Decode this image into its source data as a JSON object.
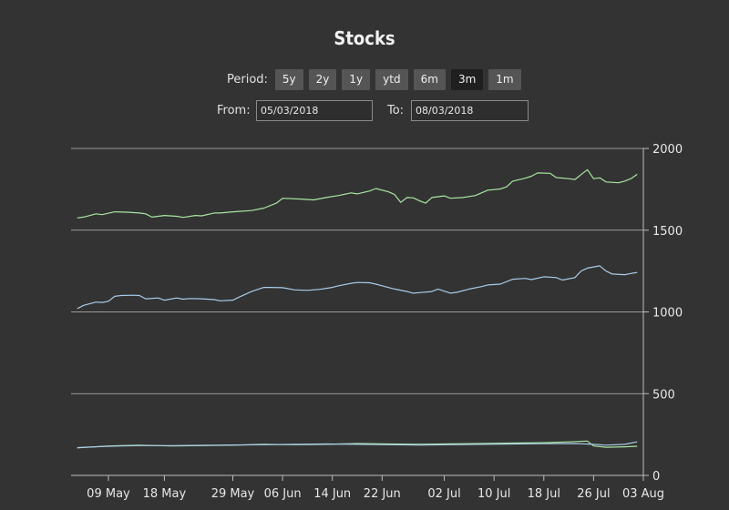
{
  "header": {
    "title": "Stocks"
  },
  "period": {
    "label": "Period:",
    "options": [
      "5y",
      "2y",
      "1y",
      "ytd",
      "6m",
      "3m",
      "1m"
    ],
    "selected": "3m"
  },
  "range": {
    "from_label": "From:",
    "from_value": "05/03/2018",
    "to_label": "To:",
    "to_value": "08/03/2018"
  },
  "colors": {
    "background": "#333333",
    "series_top": "#a8e6a1",
    "series_mid": "#a9cce8",
    "series_bottom": "#a8e6a1",
    "grid": "#bdbdbd",
    "button": "#555555",
    "button_active": "#1f1f1f"
  },
  "chart_data": {
    "type": "line",
    "y_axis": {
      "position": "right",
      "ylim": [
        0,
        2000
      ],
      "ticks": [
        0,
        500,
        1000,
        1500,
        2000
      ]
    },
    "x_axis": {
      "range": [
        "2018-05-03",
        "2018-08-03"
      ],
      "ticks": [
        {
          "date": "2018-05-09",
          "label": "09 May"
        },
        {
          "date": "2018-05-18",
          "label": "18 May"
        },
        {
          "date": "2018-05-29",
          "label": "29 May"
        },
        {
          "date": "2018-06-06",
          "label": "06 Jun"
        },
        {
          "date": "2018-06-14",
          "label": "14 Jun"
        },
        {
          "date": "2018-06-22",
          "label": "22 Jun"
        },
        {
          "date": "2018-07-02",
          "label": "02 Jul"
        },
        {
          "date": "2018-07-10",
          "label": "10 Jul"
        },
        {
          "date": "2018-07-18",
          "label": "18 Jul"
        },
        {
          "date": "2018-07-26",
          "label": "26 Jul"
        },
        {
          "date": "2018-08-03",
          "label": "03 Aug"
        }
      ]
    },
    "grid": true,
    "legend": "none",
    "series": [
      {
        "points": [
          [
            "2018-05-04",
            1575
          ],
          [
            "2018-05-05",
            1580
          ],
          [
            "2018-05-07",
            1600
          ],
          [
            "2018-05-08",
            1595
          ],
          [
            "2018-05-10",
            1612
          ],
          [
            "2018-05-12",
            1610
          ],
          [
            "2018-05-14",
            1605
          ],
          [
            "2018-05-15",
            1600
          ],
          [
            "2018-05-16",
            1580
          ],
          [
            "2018-05-18",
            1590
          ],
          [
            "2018-05-20",
            1585
          ],
          [
            "2018-05-21",
            1578
          ],
          [
            "2018-05-23",
            1590
          ],
          [
            "2018-05-24",
            1588
          ],
          [
            "2018-05-26",
            1605
          ],
          [
            "2018-05-27",
            1605
          ],
          [
            "2018-05-29",
            1612
          ],
          [
            "2018-05-30",
            1615
          ],
          [
            "2018-06-01",
            1620
          ],
          [
            "2018-06-03",
            1635
          ],
          [
            "2018-06-05",
            1665
          ],
          [
            "2018-06-06",
            1695
          ],
          [
            "2018-06-09",
            1690
          ],
          [
            "2018-06-11",
            1685
          ],
          [
            "2018-06-13",
            1700
          ],
          [
            "2018-06-15",
            1712
          ],
          [
            "2018-06-17",
            1728
          ],
          [
            "2018-06-18",
            1722
          ],
          [
            "2018-06-20",
            1740
          ],
          [
            "2018-06-21",
            1755
          ],
          [
            "2018-06-23",
            1735
          ],
          [
            "2018-06-24",
            1718
          ],
          [
            "2018-06-25",
            1670
          ],
          [
            "2018-06-26",
            1700
          ],
          [
            "2018-06-27",
            1698
          ],
          [
            "2018-06-28",
            1680
          ],
          [
            "2018-06-29",
            1665
          ],
          [
            "2018-06-30",
            1700
          ],
          [
            "2018-07-02",
            1710
          ],
          [
            "2018-07-03",
            1695
          ],
          [
            "2018-07-05",
            1700
          ],
          [
            "2018-07-07",
            1712
          ],
          [
            "2018-07-09",
            1745
          ],
          [
            "2018-07-11",
            1752
          ],
          [
            "2018-07-12",
            1765
          ],
          [
            "2018-07-13",
            1800
          ],
          [
            "2018-07-15",
            1818
          ],
          [
            "2018-07-16",
            1830
          ],
          [
            "2018-07-17",
            1850
          ],
          [
            "2018-07-19",
            1848
          ],
          [
            "2018-07-20",
            1822
          ],
          [
            "2018-07-22",
            1815
          ],
          [
            "2018-07-23",
            1810
          ],
          [
            "2018-07-24",
            1840
          ],
          [
            "2018-07-25",
            1870
          ],
          [
            "2018-07-26",
            1815
          ],
          [
            "2018-07-27",
            1820
          ],
          [
            "2018-07-28",
            1795
          ],
          [
            "2018-07-30",
            1790
          ],
          [
            "2018-07-31",
            1800
          ],
          [
            "2018-08-01",
            1815
          ],
          [
            "2018-08-02",
            1842
          ]
        ]
      },
      {
        "points": [
          [
            "2018-05-04",
            1020
          ],
          [
            "2018-05-05",
            1040
          ],
          [
            "2018-05-07",
            1060
          ],
          [
            "2018-05-08",
            1058
          ],
          [
            "2018-05-09",
            1065
          ],
          [
            "2018-05-10",
            1095
          ],
          [
            "2018-05-11",
            1100
          ],
          [
            "2018-05-13",
            1102
          ],
          [
            "2018-05-14",
            1100
          ],
          [
            "2018-05-15",
            1080
          ],
          [
            "2018-05-17",
            1085
          ],
          [
            "2018-05-18",
            1072
          ],
          [
            "2018-05-20",
            1085
          ],
          [
            "2018-05-21",
            1078
          ],
          [
            "2018-05-22",
            1082
          ],
          [
            "2018-05-24",
            1080
          ],
          [
            "2018-05-26",
            1075
          ],
          [
            "2018-05-27",
            1068
          ],
          [
            "2018-05-29",
            1072
          ],
          [
            "2018-05-30",
            1090
          ],
          [
            "2018-06-01",
            1125
          ],
          [
            "2018-06-03",
            1150
          ],
          [
            "2018-06-04",
            1150
          ],
          [
            "2018-06-06",
            1148
          ],
          [
            "2018-06-08",
            1135
          ],
          [
            "2018-06-10",
            1132
          ],
          [
            "2018-06-12",
            1138
          ],
          [
            "2018-06-14",
            1150
          ],
          [
            "2018-06-15",
            1160
          ],
          [
            "2018-06-17",
            1175
          ],
          [
            "2018-06-18",
            1180
          ],
          [
            "2018-06-20",
            1178
          ],
          [
            "2018-06-21",
            1170
          ],
          [
            "2018-06-22",
            1160
          ],
          [
            "2018-06-24",
            1140
          ],
          [
            "2018-06-26",
            1125
          ],
          [
            "2018-06-27",
            1115
          ],
          [
            "2018-06-28",
            1118
          ],
          [
            "2018-06-30",
            1125
          ],
          [
            "2018-07-01",
            1140
          ],
          [
            "2018-07-03",
            1115
          ],
          [
            "2018-07-04",
            1120
          ],
          [
            "2018-07-06",
            1140
          ],
          [
            "2018-07-08",
            1155
          ],
          [
            "2018-07-09",
            1165
          ],
          [
            "2018-07-11",
            1170
          ],
          [
            "2018-07-13",
            1200
          ],
          [
            "2018-07-15",
            1205
          ],
          [
            "2018-07-16",
            1198
          ],
          [
            "2018-07-18",
            1215
          ],
          [
            "2018-07-20",
            1210
          ],
          [
            "2018-07-21",
            1195
          ],
          [
            "2018-07-23",
            1210
          ],
          [
            "2018-07-24",
            1250
          ],
          [
            "2018-07-25",
            1268
          ],
          [
            "2018-07-27",
            1282
          ],
          [
            "2018-07-28",
            1250
          ],
          [
            "2018-07-29",
            1232
          ],
          [
            "2018-07-31",
            1228
          ],
          [
            "2018-08-01",
            1235
          ],
          [
            "2018-08-02",
            1242
          ]
        ]
      },
      {
        "points": [
          [
            "2018-05-04",
            168
          ],
          [
            "2018-05-09",
            180
          ],
          [
            "2018-05-14",
            185
          ],
          [
            "2018-05-19",
            180
          ],
          [
            "2018-05-24",
            182
          ],
          [
            "2018-05-29",
            185
          ],
          [
            "2018-06-03",
            190
          ],
          [
            "2018-06-08",
            188
          ],
          [
            "2018-06-13",
            190
          ],
          [
            "2018-06-18",
            195
          ],
          [
            "2018-06-23",
            192
          ],
          [
            "2018-06-28",
            190
          ],
          [
            "2018-07-03",
            193
          ],
          [
            "2018-07-08",
            195
          ],
          [
            "2018-07-13",
            198
          ],
          [
            "2018-07-18",
            200
          ],
          [
            "2018-07-22",
            205
          ],
          [
            "2018-07-25",
            210
          ],
          [
            "2018-07-26",
            180
          ],
          [
            "2018-07-28",
            172
          ],
          [
            "2018-07-31",
            175
          ],
          [
            "2018-08-02",
            178
          ]
        ]
      },
      {
        "points": [
          [
            "2018-05-04",
            170
          ],
          [
            "2018-05-09",
            178
          ],
          [
            "2018-05-14",
            182
          ],
          [
            "2018-05-19",
            182
          ],
          [
            "2018-05-24",
            184
          ],
          [
            "2018-05-29",
            186
          ],
          [
            "2018-06-03",
            188
          ],
          [
            "2018-06-08",
            190
          ],
          [
            "2018-06-13",
            192
          ],
          [
            "2018-06-18",
            190
          ],
          [
            "2018-06-23",
            188
          ],
          [
            "2018-06-28",
            186
          ],
          [
            "2018-07-03",
            188
          ],
          [
            "2018-07-08",
            190
          ],
          [
            "2018-07-13",
            192
          ],
          [
            "2018-07-18",
            194
          ],
          [
            "2018-07-23",
            195
          ],
          [
            "2018-07-26",
            190
          ],
          [
            "2018-07-28",
            185
          ],
          [
            "2018-07-31",
            190
          ],
          [
            "2018-08-02",
            205
          ]
        ]
      }
    ]
  }
}
